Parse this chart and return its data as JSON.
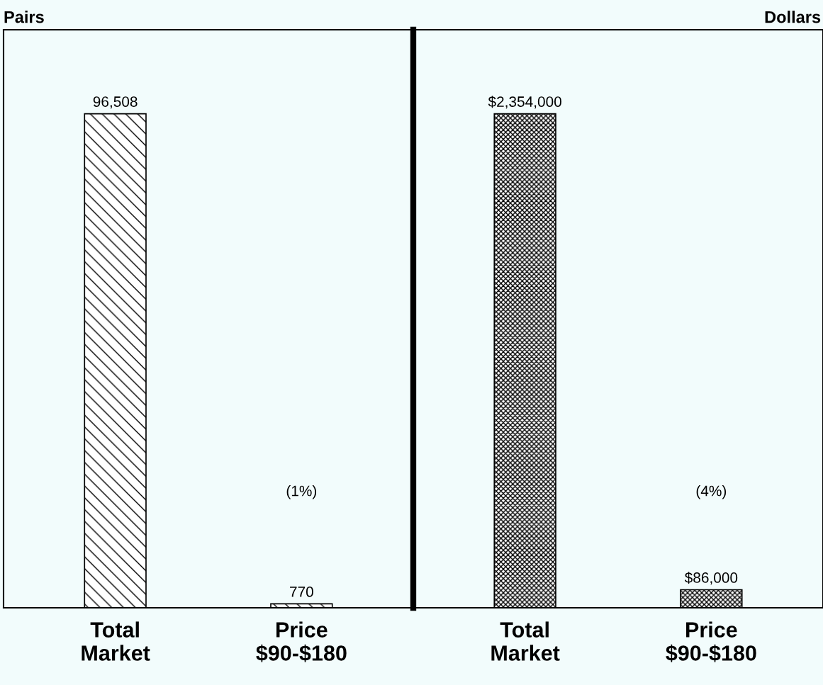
{
  "chart_data": [
    {
      "type": "bar",
      "ylabel": "Pairs",
      "categories": [
        "Total\nMarket",
        "Price\n$90-$180"
      ],
      "values": [
        96508,
        770
      ],
      "value_labels": [
        "96,508",
        "770"
      ],
      "color": "#000000",
      "annotations": [
        "(1%)"
      ]
    },
    {
      "type": "bar",
      "ylabel": "Dollars",
      "categories": [
        "Total\nMarket",
        "Price\n$90-$180"
      ],
      "values": [
        2354000,
        86000
      ],
      "value_labels": [
        "$2,354,000",
        "$86,000"
      ],
      "color": "#000000",
      "annotations": [
        "(4%)"
      ]
    }
  ]
}
